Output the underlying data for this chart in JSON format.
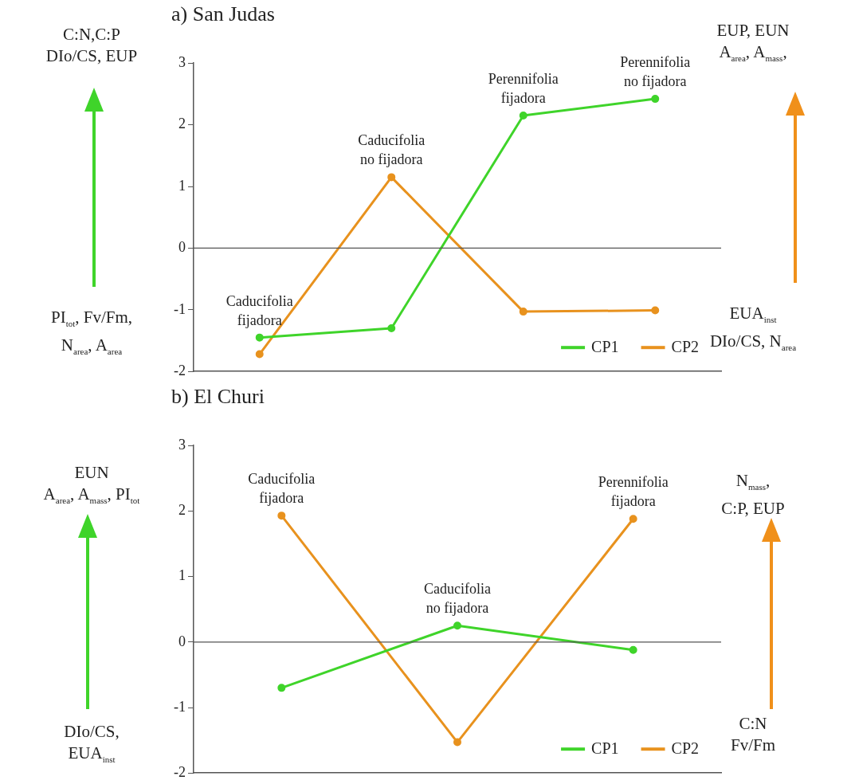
{
  "chart_data": [
    {
      "type": "line",
      "title": "a) San Judas",
      "categories": [
        null,
        null,
        null,
        null
      ],
      "series": [
        {
          "name": "CP1",
          "color": "#3fd42a",
          "values": [
            -1.45,
            -1.3,
            2.15,
            2.42
          ]
        },
        {
          "name": "CP2",
          "color": "#e8921e",
          "values": [
            -1.72,
            1.15,
            -1.03,
            -1.01
          ]
        }
      ],
      "ylim": [
        -2,
        3
      ],
      "yticks": [
        -2,
        -1,
        0,
        1,
        2,
        3
      ],
      "tick_labels": "y",
      "grid": false,
      "legend": "bottom right",
      "marker": "circle",
      "line_style": "solid",
      "ref_lines": [
        {
          "axis": "y",
          "value": 0,
          "color": "#555555"
        }
      ],
      "annotations": [
        "Caducifolia\nfijadora",
        "Caducifolia\nno fijadora",
        "Perennifolia\nfijadora",
        "Perennifolia\nno fijadora",
        "C:N,C:P\nDIo/CS, EUP",
        "PI$_{tot}$, Fv/Fm,\nN$_{area}$, A$_{area}$",
        "EUP, EUN\nA$_{area}$, A$_{mass}$,",
        "EUA$_{inst}$\nDIo/CS, N$_{area}$"
      ]
    },
    {
      "type": "line",
      "title": "b) El Churi",
      "categories": [
        null,
        null,
        null
      ],
      "series": [
        {
          "name": "CP1",
          "color": "#3fd42a",
          "values": [
            -0.7,
            0.25,
            -0.12
          ]
        },
        {
          "name": "CP2",
          "color": "#e8921e",
          "values": [
            1.93,
            -1.53,
            1.88
          ]
        }
      ],
      "ylim": [
        -2,
        3
      ],
      "yticks": [
        -2,
        -1,
        0,
        1,
        2,
        3
      ],
      "tick_labels": "y",
      "grid": false,
      "legend": "bottom right",
      "marker": "circle",
      "line_style": "solid",
      "ref_lines": [
        {
          "axis": "y",
          "value": 0,
          "color": "#555555"
        }
      ],
      "annotations": [
        "Caducifolia\nfijadora",
        "Caducifolia\nno fijadora",
        "Perennifolia\nfijadora",
        "EUN\nA$_{area}$, A$_{mass}$, PI$_{tot}$",
        "DIo/CS,\nEUA$_{inst}$",
        "N$_{mass}$,\nC:P, EUP",
        "C:N\nFv/Fm"
      ]
    }
  ]
}
